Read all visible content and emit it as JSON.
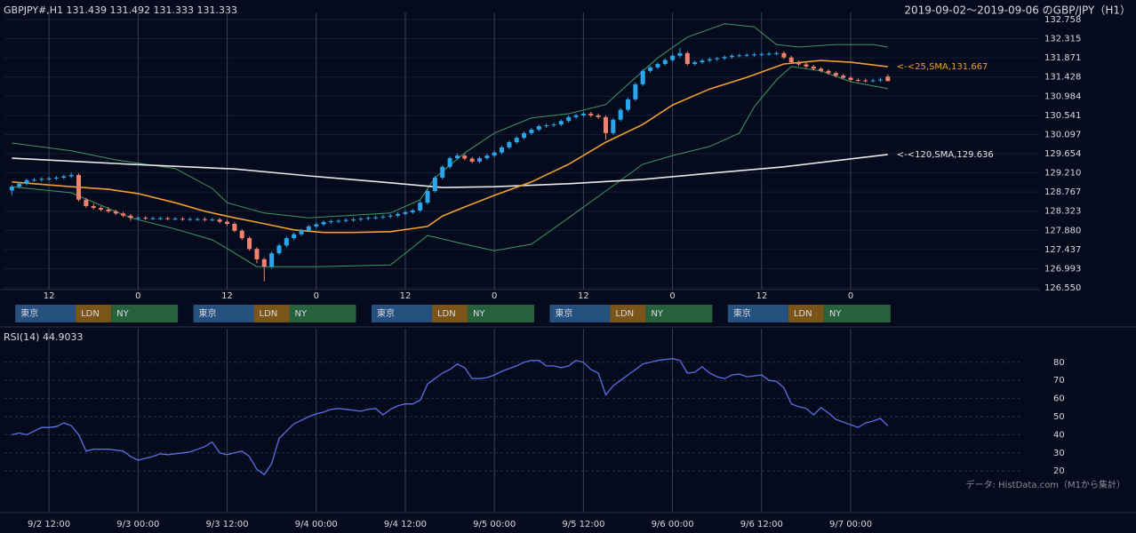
{
  "chart_data": [
    {
      "type": "candlestick",
      "title": "GBPJPY#,H1 131.439 131.492 131.333 131.333",
      "subtitle": "2019-09-02～2019-09-06 のGBP/JPY（H1）",
      "up_color": "#2aa6ec",
      "down_color": "#f28270",
      "x": [
        7,
        8,
        9,
        10,
        11,
        12,
        13,
        14,
        15,
        16,
        17,
        18,
        19,
        20,
        21,
        22,
        23,
        24,
        25,
        26,
        27,
        28,
        29,
        30,
        31,
        32,
        33,
        34,
        35,
        36,
        37,
        38,
        39,
        40,
        41,
        42,
        43,
        44,
        45,
        46,
        47,
        48,
        49,
        50,
        51,
        52,
        53,
        54,
        55,
        56,
        57,
        58,
        59,
        60,
        61,
        62,
        63,
        64,
        65,
        66,
        67,
        68,
        69,
        70,
        71,
        72,
        73,
        74,
        75,
        76,
        77,
        78,
        79,
        80,
        81,
        82,
        83,
        84,
        85,
        86,
        87,
        88,
        89,
        90,
        91,
        92,
        93,
        94,
        95,
        96,
        97,
        98,
        99,
        100,
        101,
        102,
        103,
        104,
        105,
        106,
        107,
        108,
        109,
        110,
        111,
        112,
        113,
        114,
        115,
        116,
        117,
        118,
        119,
        120,
        121,
        122,
        123,
        124,
        125
      ],
      "open": [
        128.8,
        128.89,
        128.96,
        129.04,
        129.05,
        129.07,
        129.08,
        129.1,
        129.13,
        129.16,
        128.59,
        128.44,
        128.4,
        128.36,
        128.32,
        128.27,
        128.22,
        128.17,
        128.17,
        128.16,
        128.16,
        128.16,
        128.15,
        128.15,
        128.14,
        128.14,
        128.14,
        128.13,
        128.13,
        128.08,
        128.03,
        127.87,
        127.7,
        127.45,
        127.21,
        127.04,
        127.35,
        127.53,
        127.7,
        127.79,
        127.88,
        127.97,
        128.02,
        128.07,
        128.09,
        128.1,
        128.12,
        128.13,
        128.15,
        128.17,
        128.18,
        128.2,
        128.22,
        128.26,
        128.3,
        128.34,
        128.52,
        128.79,
        129.1,
        129.35,
        129.55,
        129.61,
        129.54,
        129.47,
        129.55,
        129.61,
        129.68,
        129.8,
        129.92,
        130.02,
        130.13,
        130.21,
        130.29,
        130.31,
        130.33,
        130.41,
        130.5,
        130.54,
        130.58,
        130.54,
        130.5,
        130.13,
        130.44,
        130.67,
        130.91,
        131.26,
        131.57,
        131.65,
        131.73,
        131.82,
        131.92,
        131.98,
        131.73,
        131.77,
        131.81,
        131.84,
        131.86,
        131.89,
        131.92,
        131.93,
        131.94,
        131.95,
        131.96,
        131.97,
        131.98,
        131.88,
        131.77,
        131.72,
        131.67,
        131.62,
        131.57,
        131.52,
        131.46,
        131.41,
        131.36,
        131.35,
        131.34,
        131.35,
        131.439
      ],
      "high": [
        128.93,
        129.0,
        129.08,
        129.09,
        129.11,
        129.12,
        129.14,
        129.17,
        129.22,
        129.2,
        128.63,
        128.5,
        128.44,
        128.42,
        128.36,
        128.31,
        128.26,
        128.21,
        128.21,
        128.2,
        128.2,
        128.2,
        128.19,
        128.19,
        128.18,
        128.18,
        128.18,
        128.17,
        128.17,
        128.12,
        128.07,
        127.91,
        127.74,
        127.49,
        127.25,
        127.39,
        127.57,
        127.74,
        127.83,
        127.92,
        128.01,
        128.06,
        128.11,
        128.13,
        128.14,
        128.16,
        128.17,
        128.19,
        128.21,
        128.22,
        128.24,
        128.26,
        128.3,
        128.34,
        128.38,
        128.56,
        128.83,
        129.14,
        129.39,
        129.59,
        129.66,
        129.65,
        129.58,
        129.59,
        129.65,
        129.72,
        129.84,
        129.96,
        130.06,
        130.17,
        130.25,
        130.33,
        130.35,
        130.37,
        130.45,
        130.54,
        130.58,
        130.62,
        130.62,
        130.58,
        130.54,
        130.48,
        130.71,
        130.95,
        131.3,
        131.61,
        131.69,
        131.77,
        131.86,
        131.96,
        132.1,
        132.02,
        131.81,
        131.85,
        131.88,
        131.9,
        131.93,
        131.96,
        131.97,
        131.98,
        131.99,
        132.0,
        132.01,
        132.02,
        132.02,
        131.92,
        131.81,
        131.76,
        131.71,
        131.66,
        131.61,
        131.56,
        131.5,
        131.45,
        131.4,
        131.39,
        131.39,
        131.41,
        131.492
      ],
      "low": [
        128.7,
        128.85,
        128.92,
        129.0,
        129.01,
        129.03,
        129.04,
        129.06,
        129.09,
        128.55,
        128.4,
        128.36,
        128.32,
        128.28,
        128.23,
        128.18,
        128.1,
        128.12,
        128.12,
        128.12,
        128.12,
        128.11,
        128.11,
        128.1,
        128.1,
        128.1,
        128.09,
        128.09,
        128.04,
        127.99,
        127.83,
        127.66,
        127.41,
        127.12,
        126.7,
        127.0,
        127.31,
        127.49,
        127.66,
        127.75,
        127.84,
        127.93,
        127.98,
        128.03,
        128.05,
        128.06,
        128.08,
        128.09,
        128.11,
        128.13,
        128.14,
        128.16,
        128.18,
        128.22,
        128.26,
        128.3,
        128.48,
        128.75,
        129.06,
        129.31,
        129.51,
        129.5,
        129.43,
        129.43,
        129.51,
        129.57,
        129.64,
        129.76,
        129.88,
        129.98,
        130.09,
        130.17,
        130.25,
        130.27,
        130.29,
        130.37,
        130.46,
        130.5,
        130.5,
        130.46,
        129.98,
        130.09,
        130.4,
        130.63,
        130.87,
        131.22,
        131.53,
        131.61,
        131.69,
        131.78,
        131.88,
        131.69,
        131.69,
        131.73,
        131.77,
        131.8,
        131.82,
        131.85,
        131.88,
        131.89,
        131.9,
        131.91,
        131.92,
        131.93,
        131.84,
        131.73,
        131.68,
        131.63,
        131.58,
        131.53,
        131.48,
        131.42,
        131.37,
        131.32,
        131.31,
        131.3,
        131.3,
        131.31,
        131.333
      ],
      "close": [
        128.89,
        128.96,
        129.04,
        129.05,
        129.07,
        129.08,
        129.1,
        129.13,
        129.16,
        128.59,
        128.44,
        128.4,
        128.36,
        128.32,
        128.27,
        128.22,
        128.17,
        128.17,
        128.16,
        128.16,
        128.16,
        128.15,
        128.15,
        128.14,
        128.14,
        128.14,
        128.13,
        128.13,
        128.08,
        128.03,
        127.87,
        127.7,
        127.45,
        127.21,
        127.04,
        127.35,
        127.53,
        127.7,
        127.79,
        127.88,
        127.97,
        128.02,
        128.07,
        128.09,
        128.1,
        128.12,
        128.13,
        128.15,
        128.17,
        128.18,
        128.2,
        128.22,
        128.26,
        128.3,
        128.34,
        128.52,
        128.79,
        129.1,
        129.35,
        129.55,
        129.61,
        129.54,
        129.47,
        129.55,
        129.61,
        129.68,
        129.8,
        129.92,
        130.02,
        130.13,
        130.21,
        130.29,
        130.31,
        130.33,
        130.41,
        130.5,
        130.54,
        130.58,
        130.54,
        130.5,
        130.13,
        130.44,
        130.67,
        130.91,
        131.26,
        131.57,
        131.65,
        131.73,
        131.82,
        131.92,
        131.98,
        131.73,
        131.77,
        131.81,
        131.84,
        131.86,
        131.89,
        131.92,
        131.93,
        131.94,
        131.95,
        131.96,
        131.97,
        131.98,
        131.88,
        131.77,
        131.72,
        131.67,
        131.62,
        131.57,
        131.52,
        131.46,
        131.41,
        131.36,
        131.35,
        131.34,
        131.35,
        131.37,
        131.333
      ],
      "overlays": [
        {
          "color": "#3e9a62",
          "x": [
            7,
            15,
            21,
            29,
            34,
            36,
            41,
            47,
            58,
            62,
            64,
            68,
            72,
            77,
            82,
            87,
            90,
            94,
            98,
            103,
            107,
            110,
            113,
            118,
            123,
            125
          ],
          "values": [
            129.9,
            129.72,
            129.51,
            129.31,
            128.85,
            128.52,
            128.28,
            128.17,
            128.28,
            128.59,
            129.1,
            129.67,
            130.13,
            130.48,
            130.58,
            130.79,
            131.26,
            131.87,
            132.35,
            132.66,
            132.59,
            132.18,
            132.12,
            132.18,
            132.18,
            132.12
          ]
        },
        {
          "color": "#3e9a62",
          "x": [
            7,
            15,
            23,
            29,
            34,
            36,
            40,
            48,
            58,
            60,
            63,
            68,
            72,
            77,
            82,
            87,
            92,
            96,
            101,
            105,
            107,
            110,
            112,
            116,
            120,
            125
          ],
          "values": [
            128.89,
            128.75,
            128.17,
            127.91,
            127.66,
            127.46,
            127.04,
            127.04,
            127.08,
            127.35,
            127.76,
            127.56,
            127.41,
            127.56,
            128.17,
            128.79,
            129.41,
            129.61,
            129.82,
            130.13,
            130.74,
            131.36,
            131.67,
            131.57,
            131.32,
            131.16
          ]
        },
        {
          "label": "<-<120,SMA,129.636",
          "color": "#e8e8e8",
          "x": [
            7,
            23,
            37,
            47,
            58,
            65,
            72,
            82,
            92,
            101,
            111,
            125
          ],
          "values": [
            129.55,
            129.41,
            129.3,
            129.14,
            128.98,
            128.87,
            128.89,
            128.96,
            129.06,
            129.2,
            129.35,
            129.636
          ]
        },
        {
          "label": "<-<25,SMA,131.667",
          "color": "#f0a030",
          "x": [
            7,
            10,
            15,
            20,
            24,
            29,
            33,
            37,
            40,
            45,
            49,
            53,
            58,
            63,
            65,
            68,
            72,
            77,
            82,
            87,
            92,
            96,
            101,
            106,
            111,
            116,
            120,
            125
          ],
          "values": [
            129.0,
            128.96,
            128.89,
            128.83,
            128.73,
            128.52,
            128.32,
            128.17,
            128.07,
            127.89,
            127.83,
            127.83,
            127.85,
            127.97,
            128.21,
            128.42,
            128.69,
            129.0,
            129.41,
            129.92,
            130.33,
            130.78,
            131.15,
            131.42,
            131.73,
            131.81,
            131.77,
            131.667
          ]
        }
      ],
      "sessions": [
        {
          "label": "東京",
          "color": "#26507e"
        },
        {
          "label": "LDN",
          "color": "#7a5418"
        },
        {
          "label": "NY",
          "color": "#27613e"
        }
      ],
      "xlim": [
        6,
        145.5
      ],
      "xticks": [
        {
          "value": 12,
          "label": "12"
        },
        {
          "value": 24,
          "label": "0"
        },
        {
          "value": 36,
          "label": "12"
        },
        {
          "value": 48,
          "label": "0"
        },
        {
          "value": 60,
          "label": "12"
        },
        {
          "value": 72,
          "label": "0"
        },
        {
          "value": 84,
          "label": "12"
        },
        {
          "value": 96,
          "label": "0"
        },
        {
          "value": 108,
          "label": "12"
        },
        {
          "value": 120,
          "label": "0"
        }
      ],
      "ylim": [
        126.55,
        132.758
      ],
      "yticks": [
        132.758,
        132.315,
        131.871,
        131.428,
        130.984,
        130.541,
        130.097,
        129.654,
        {
          "value": 129.21,
          "label": "129.210"
        },
        128.767,
        128.323,
        {
          "value": 127.88,
          "label": "127.880"
        },
        127.437,
        126.993,
        {
          "value": 126.55,
          "label": "126.550"
        }
      ],
      "grid": true
    },
    {
      "type": "line",
      "title": "RSI(14) 44.9033",
      "source": "データ: HistData.com（M1から集計）",
      "color": "#5b6fe6",
      "x": [
        7,
        8,
        9,
        10,
        11,
        12,
        13,
        14,
        15,
        16,
        17,
        18,
        19,
        20,
        21,
        22,
        23,
        24,
        25,
        26,
        27,
        28,
        29,
        30,
        31,
        32,
        33,
        34,
        35,
        36,
        37,
        38,
        39,
        40,
        41,
        42,
        43,
        44,
        45,
        46,
        47,
        48,
        49,
        50,
        51,
        52,
        53,
        54,
        55,
        56,
        57,
        58,
        59,
        60,
        61,
        62,
        63,
        64,
        65,
        66,
        67,
        68,
        69,
        70,
        71,
        72,
        73,
        74,
        75,
        76,
        77,
        78,
        79,
        80,
        81,
        82,
        83,
        84,
        85,
        86,
        87,
        88,
        89,
        90,
        91,
        92,
        93,
        94,
        95,
        96,
        97,
        98,
        99,
        100,
        101,
        102,
        103,
        104,
        105,
        106,
        107,
        108,
        109,
        110,
        111,
        112,
        113,
        114,
        115,
        116,
        117,
        118,
        119,
        120,
        121,
        122,
        123,
        124,
        125
      ],
      "values": [
        40,
        41,
        40,
        42,
        44,
        44,
        44.5,
        46.5,
        45,
        40,
        31,
        32,
        32,
        32,
        31.5,
        31,
        28,
        26,
        27,
        28,
        29.5,
        29,
        29.5,
        30,
        30.5,
        32,
        33.5,
        36,
        30,
        29,
        30,
        31,
        28,
        21,
        18,
        24,
        38,
        42,
        46,
        48,
        50,
        51.5,
        52.5,
        54,
        54.5,
        54,
        53.5,
        53,
        54,
        54.5,
        51,
        54,
        56,
        57,
        57,
        59,
        68,
        71,
        74,
        76,
        79,
        77,
        71,
        71,
        71.5,
        73,
        75,
        76.5,
        78,
        80,
        81,
        81,
        78,
        78,
        77,
        78,
        81,
        80,
        76,
        74,
        62,
        67,
        70,
        73,
        76,
        79,
        80,
        81,
        81.5,
        82,
        81,
        74,
        74.5,
        77.5,
        74,
        72,
        71,
        73,
        73.5,
        72,
        72.5,
        73,
        70,
        69.5,
        66,
        57,
        55.5,
        54.5,
        51,
        55,
        52,
        48.5,
        47,
        45.5,
        44,
        46.5,
        47.5,
        49,
        44.9033
      ],
      "xlim": [
        6,
        145.5
      ],
      "xticks": [
        {
          "value": 12,
          "label": "9/2 12:00"
        },
        {
          "value": 24,
          "label": "9/3 00:00"
        },
        {
          "value": 36,
          "label": "9/3 12:00"
        },
        {
          "value": 48,
          "label": "9/4 00:00"
        },
        {
          "value": 60,
          "label": "9/4 12:00"
        },
        {
          "value": 72,
          "label": "9/5 00:00"
        },
        {
          "value": 84,
          "label": "9/5 12:00"
        },
        {
          "value": 96,
          "label": "9/6 00:00"
        },
        {
          "value": 108,
          "label": "9/6 12:00"
        },
        {
          "value": 120,
          "label": "9/7 00:00"
        }
      ],
      "ylim": [
        0,
        100
      ],
      "yticks": [
        20,
        30,
        40,
        50,
        60,
        70,
        80
      ],
      "grid": true
    }
  ]
}
